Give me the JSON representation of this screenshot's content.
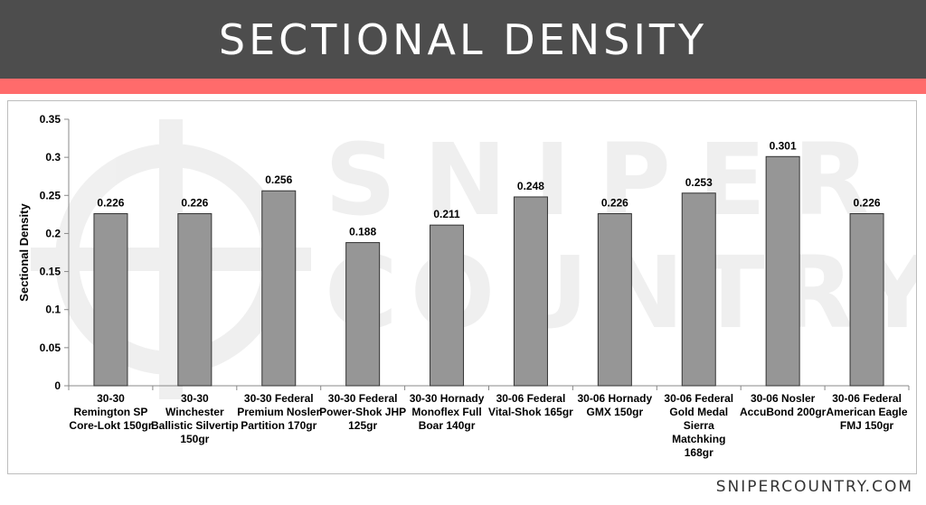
{
  "header": {
    "title": "SECTIONAL DENSITY"
  },
  "watermark": {
    "text_top": "SNIPER",
    "text_bottom": "COUNTRY",
    "icon": "crosshair-icon"
  },
  "footer": {
    "site": "SNIPERCOUNTRY.COM"
  },
  "colors": {
    "header_bg": "#4d4d4d",
    "accent_bar": "#ff6b6b",
    "bar_fill": "#969696",
    "bar_stroke": "#333333"
  },
  "chart_data": {
    "type": "bar",
    "ylabel": "Sectional Density",
    "xlabel": "",
    "ylim": [
      0,
      0.35
    ],
    "yticks": [
      0,
      0.05,
      0.1,
      0.15,
      0.2,
      0.25,
      0.3,
      0.35
    ],
    "ytick_labels": [
      "0",
      "0.05",
      "0.1",
      "0.15",
      "0.2",
      "0.25",
      "0.3",
      "0.35"
    ],
    "grid": false,
    "categories": [
      [
        "30-30",
        "Remington SP",
        "Core-Lokt 150gr"
      ],
      [
        "30-30",
        "Winchester",
        "Ballistic Silvertip",
        "150gr"
      ],
      [
        "30-30 Federal",
        "Premium Nosler",
        "Partition 170gr"
      ],
      [
        "30-30 Federal",
        "Power-Shok JHP",
        "125gr"
      ],
      [
        "30-30 Hornady",
        "Monoflex Full",
        "Boar 140gr"
      ],
      [
        "30-06 Federal",
        "Vital-Shok 165gr"
      ],
      [
        "30-06 Hornady",
        "GMX 150gr"
      ],
      [
        "30-06 Federal",
        "Gold Medal",
        "Sierra",
        "Matchking",
        "168gr"
      ],
      [
        "30-06 Nosler",
        "AccuBond 200gr"
      ],
      [
        "30-06 Federal",
        "American Eagle",
        "FMJ 150gr"
      ]
    ],
    "values": [
      0.226,
      0.226,
      0.256,
      0.188,
      0.211,
      0.248,
      0.226,
      0.253,
      0.301,
      0.226
    ],
    "data_labels": [
      "0.226",
      "0.226",
      "0.256",
      "0.188",
      "0.211",
      "0.248",
      "0.226",
      "0.253",
      "0.301",
      "0.226"
    ]
  }
}
